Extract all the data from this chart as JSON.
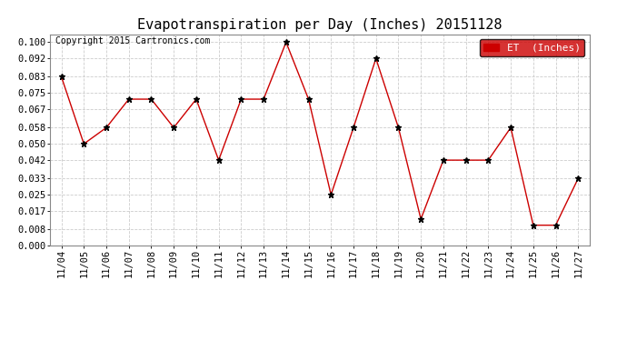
{
  "title": "Evapotranspiration per Day (Inches) 20151128",
  "copyright": "Copyright 2015 Cartronics.com",
  "legend_label": "ET  (Inches)",
  "legend_color": "#cc0000",
  "line_color": "#cc0000",
  "marker_color": "black",
  "background_color": "#ffffff",
  "grid_color": "#cccccc",
  "dates": [
    "11/04",
    "11/05",
    "11/06",
    "11/07",
    "11/08",
    "11/09",
    "11/10",
    "11/11",
    "11/12",
    "11/13",
    "11/14",
    "11/15",
    "11/16",
    "11/17",
    "11/18",
    "11/19",
    "11/20",
    "11/21",
    "11/22",
    "11/23",
    "11/24",
    "11/25",
    "11/26",
    "11/27"
  ],
  "values": [
    0.083,
    0.05,
    0.058,
    0.072,
    0.072,
    0.058,
    0.072,
    0.042,
    0.072,
    0.072,
    0.1,
    0.072,
    0.025,
    0.058,
    0.092,
    0.058,
    0.013,
    0.042,
    0.042,
    0.042,
    0.058,
    0.01,
    0.01,
    0.033
  ],
  "ylim": [
    0.0,
    0.104
  ],
  "yticks": [
    0.0,
    0.008,
    0.017,
    0.025,
    0.033,
    0.042,
    0.05,
    0.058,
    0.067,
    0.075,
    0.083,
    0.092,
    0.1
  ],
  "title_fontsize": 11,
  "tick_fontsize": 7.5,
  "copyright_fontsize": 7,
  "legend_fontsize": 8
}
